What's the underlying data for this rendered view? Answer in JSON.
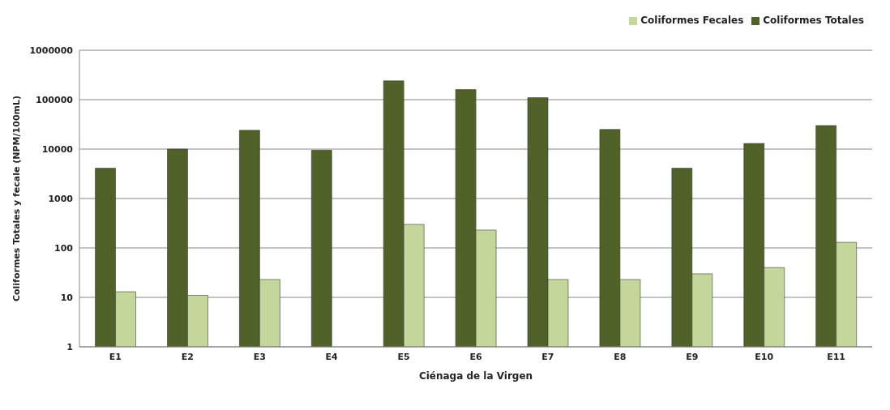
{
  "chart_data": {
    "type": "bar",
    "xlabel": "Ciénaga de la Virgen",
    "ylabel": "Coliformes Totales y fecale (NPM/100mL)",
    "categories": [
      "E1",
      "E2",
      "E3",
      "E4",
      "E5",
      "E6",
      "E7",
      "E8",
      "E9",
      "E10",
      "E11"
    ],
    "series": [
      {
        "name": "Coliformes Totales",
        "color": "#506228",
        "values": [
          4100,
          10000,
          24000,
          9500,
          240000,
          160000,
          110000,
          25000,
          4100,
          13000,
          30000
        ]
      },
      {
        "name": "Coliformes Fecales",
        "color": "#c4d79b",
        "values": [
          13,
          11,
          23,
          null,
          300,
          230,
          23,
          23,
          30,
          40,
          130
        ]
      }
    ],
    "log": true,
    "ylim": [
      1,
      1000000
    ],
    "yticks": [
      1,
      10,
      100,
      1000,
      10000,
      100000,
      1000000
    ],
    "grid": "y",
    "legend": "top right"
  }
}
